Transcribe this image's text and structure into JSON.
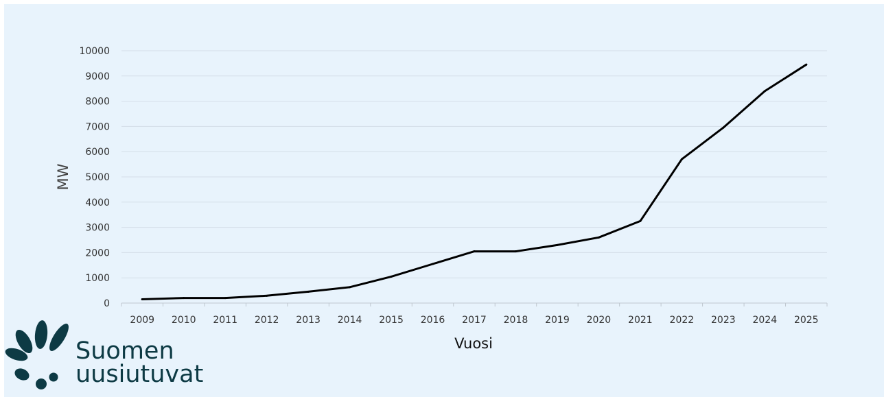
{
  "chart_data": {
    "type": "line",
    "title": "",
    "xlabel": "Vuosi",
    "ylabel": "MW",
    "ylim": [
      0,
      10000
    ],
    "yticks": [
      0,
      1000,
      2000,
      3000,
      4000,
      5000,
      6000,
      7000,
      8000,
      9000,
      10000
    ],
    "grid": true,
    "x": [
      "2009",
      "2010",
      "2011",
      "2012",
      "2013",
      "2014",
      "2015",
      "2016",
      "2017",
      "2018",
      "2019",
      "2020",
      "2021",
      "2022",
      "2023",
      "2024",
      "2025"
    ],
    "series": [
      {
        "values": [
          150,
          200,
          200,
          290,
          450,
          630,
          1050,
          1550,
          2050,
          2050,
          2300,
          2600,
          3250,
          5700,
          6950,
          8400,
          9450
        ],
        "color": "#000000"
      }
    ]
  },
  "logo": {
    "line1": "Suomen",
    "line2": "uusiutuvat",
    "color": "#0d3a44"
  }
}
